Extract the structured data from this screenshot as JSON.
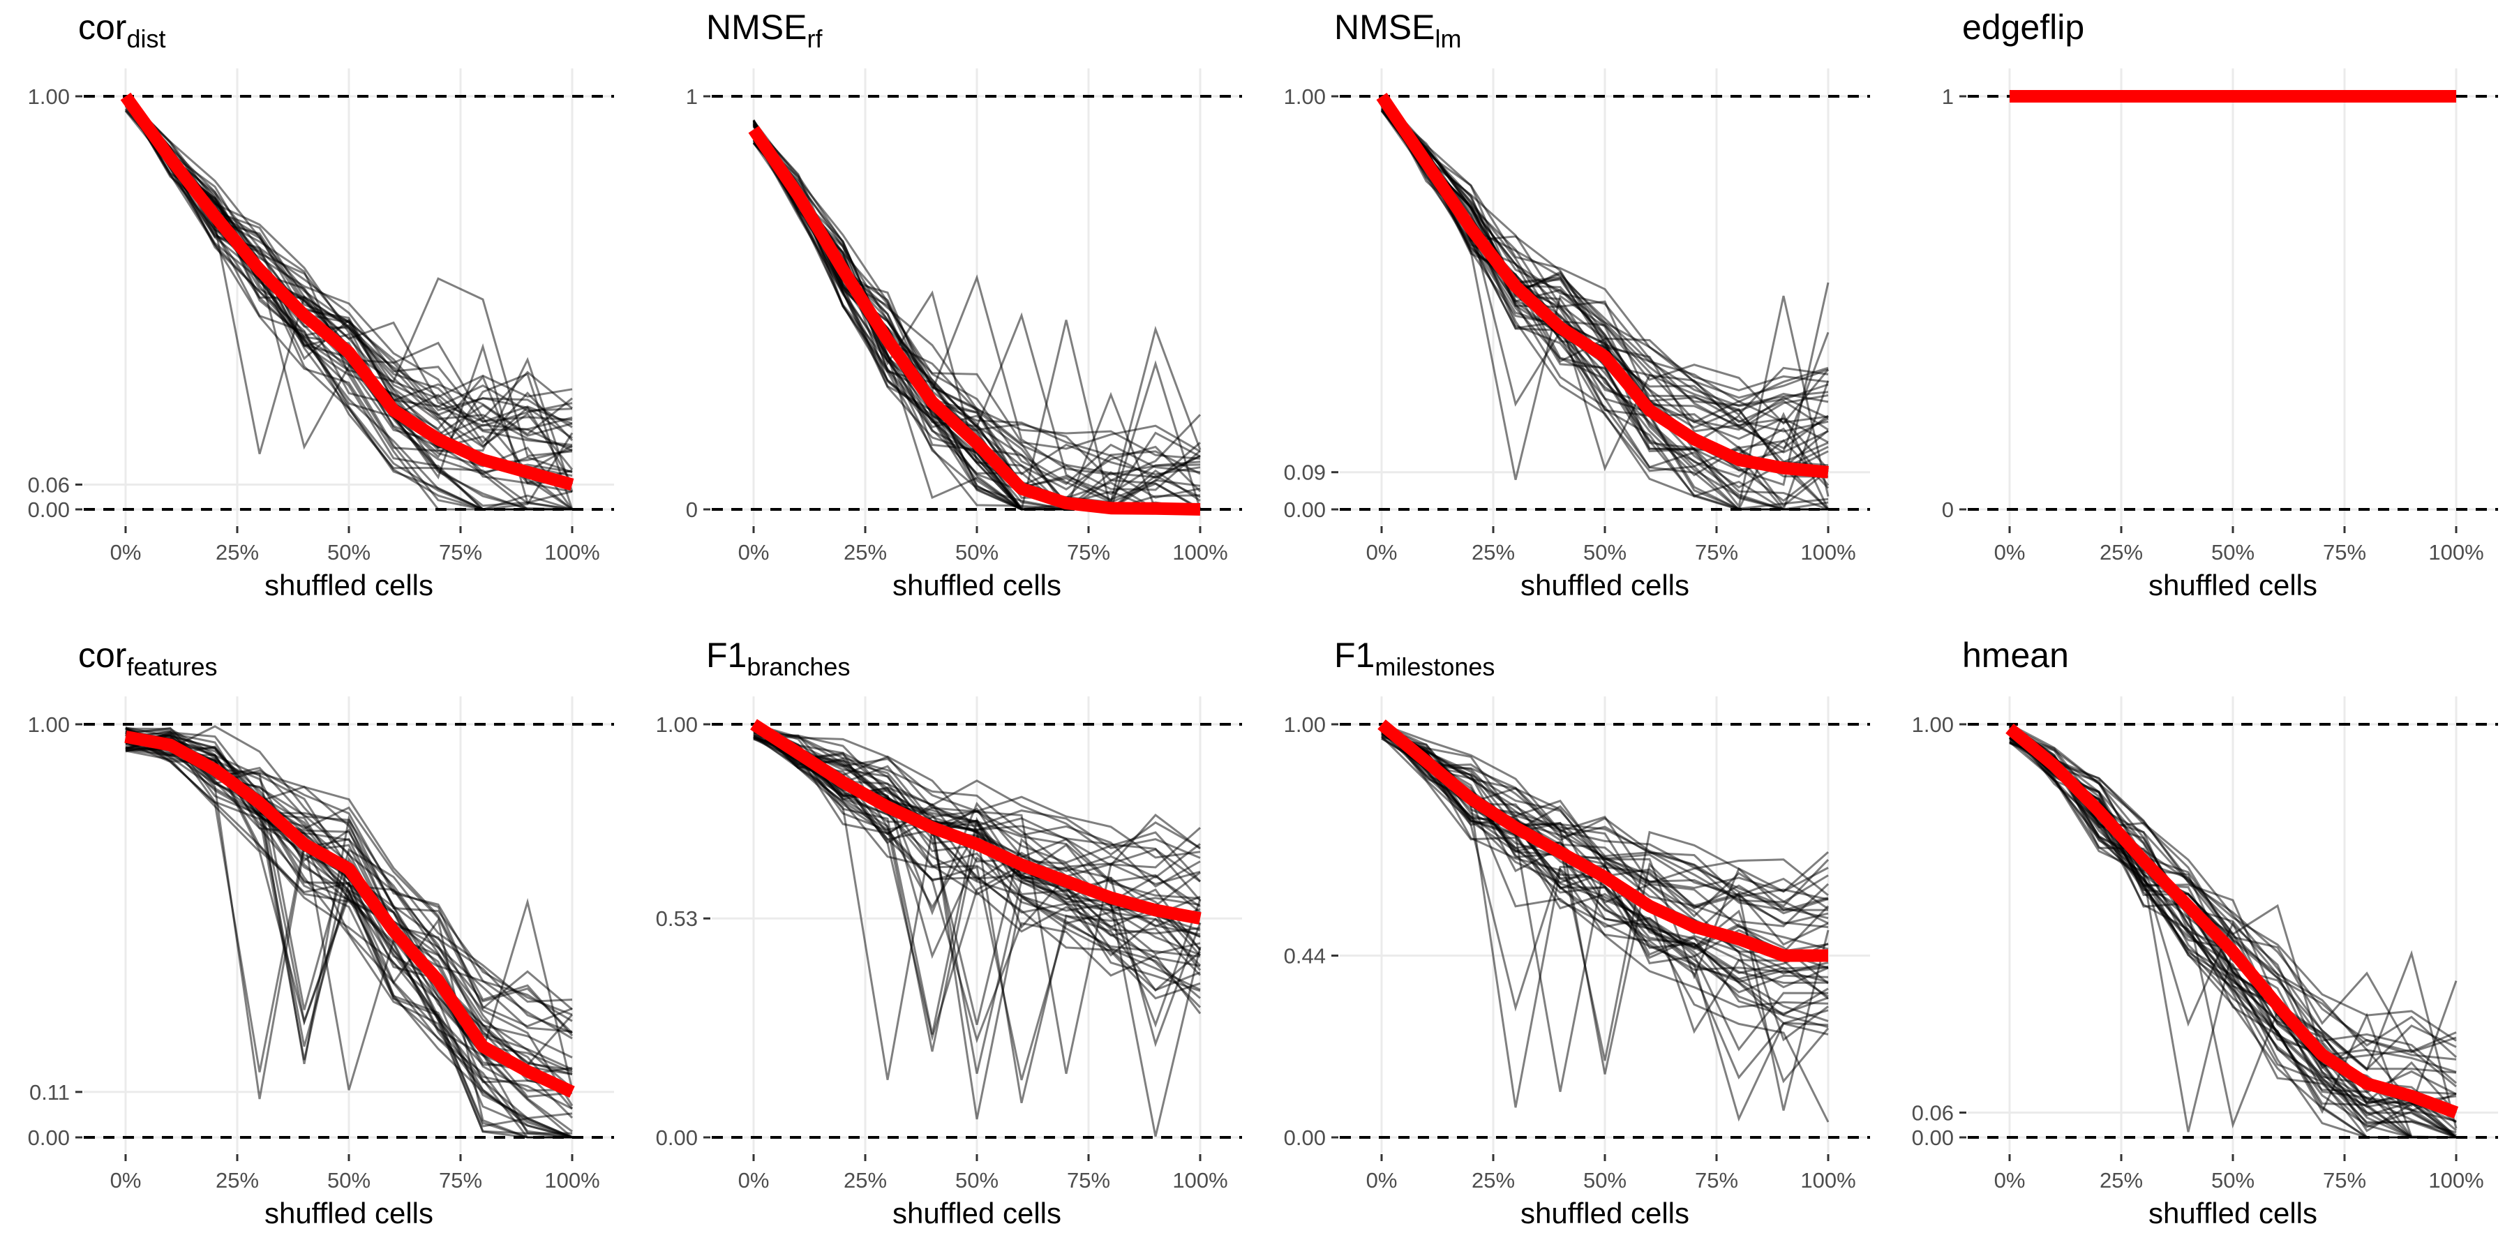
{
  "chart_data": [
    {
      "type": "line",
      "title": "cor",
      "title_sub": "dist",
      "xlabel": "shuffled cells",
      "xticks": [
        "0%",
        "25%",
        "50%",
        "75%",
        "100%"
      ],
      "xlim": [
        0,
        1
      ],
      "yticks": [
        "0.00",
        "0.06",
        "1.00"
      ],
      "ytick_values": [
        0,
        0.06,
        1
      ],
      "ylim": [
        0,
        1
      ],
      "reference_lines": [
        0,
        1
      ],
      "mean_line": {
        "color": "#ff0000",
        "x": [
          0,
          0.1,
          0.2,
          0.3,
          0.4,
          0.5,
          0.6,
          0.7,
          0.8,
          0.9,
          1.0
        ],
        "y": [
          1.0,
          0.85,
          0.71,
          0.58,
          0.47,
          0.38,
          0.24,
          0.17,
          0.12,
          0.09,
          0.06
        ]
      },
      "individual_lines": {
        "color": "#000000",
        "count": 45
      }
    },
    {
      "type": "line",
      "title": "NMSE",
      "title_sub": "rf",
      "xlabel": "shuffled cells",
      "xticks": [
        "0%",
        "25%",
        "50%",
        "75%",
        "100%"
      ],
      "xlim": [
        0,
        1
      ],
      "yticks": [
        "0",
        "1"
      ],
      "ytick_values": [
        0,
        1
      ],
      "ylim": [
        0,
        1
      ],
      "reference_lines": [
        0,
        1
      ],
      "mean_line": {
        "color": "#ff0000",
        "x": [
          0,
          0.1,
          0.2,
          0.3,
          0.4,
          0.5,
          0.6,
          0.7,
          0.8,
          0.9,
          1.0
        ],
        "y": [
          0.92,
          0.76,
          0.58,
          0.41,
          0.26,
          0.16,
          0.05,
          0.015,
          0.003,
          0.002,
          0.0
        ]
      },
      "individual_lines": {
        "color": "#000000",
        "count": 45
      }
    },
    {
      "type": "line",
      "title": "NMSE",
      "title_sub": "lm",
      "xlabel": "shuffled cells",
      "xticks": [
        "0%",
        "25%",
        "50%",
        "75%",
        "100%"
      ],
      "xlim": [
        0,
        1
      ],
      "yticks": [
        "0.00",
        "0.09",
        "1.00"
      ],
      "ytick_values": [
        0,
        0.09,
        1
      ],
      "ylim": [
        0,
        1
      ],
      "reference_lines": [
        0,
        1
      ],
      "mean_line": {
        "color": "#ff0000",
        "x": [
          0,
          0.1,
          0.2,
          0.3,
          0.4,
          0.5,
          0.6,
          0.7,
          0.8,
          0.9,
          1.0
        ],
        "y": [
          1.0,
          0.84,
          0.68,
          0.54,
          0.44,
          0.37,
          0.24,
          0.17,
          0.12,
          0.1,
          0.09
        ]
      },
      "individual_lines": {
        "color": "#000000",
        "count": 45
      }
    },
    {
      "type": "line",
      "title": "edgeflip",
      "title_sub": "",
      "xlabel": "shuffled cells",
      "xticks": [
        "0%",
        "25%",
        "50%",
        "75%",
        "100%"
      ],
      "xlim": [
        0,
        1
      ],
      "yticks": [
        "0",
        "1"
      ],
      "ytick_values": [
        0,
        1
      ],
      "ylim": [
        0,
        1
      ],
      "reference_lines": [
        0,
        1
      ],
      "mean_line": {
        "color": "#ff0000",
        "x": [
          0,
          0.1,
          0.2,
          0.3,
          0.4,
          0.5,
          0.6,
          0.7,
          0.8,
          0.9,
          1.0
        ],
        "y": [
          1,
          1,
          1,
          1,
          1,
          1,
          1,
          1,
          1,
          1,
          1
        ]
      },
      "individual_lines": {
        "color": "#000000",
        "count": 0
      }
    },
    {
      "type": "line",
      "title": "cor",
      "title_sub": "features",
      "xlabel": "shuffled cells",
      "xticks": [
        "0%",
        "25%",
        "50%",
        "75%",
        "100%"
      ],
      "xlim": [
        0,
        1
      ],
      "yticks": [
        "0.00",
        "0.11",
        "1.00"
      ],
      "ytick_values": [
        0,
        0.11,
        1
      ],
      "ylim": [
        0,
        1
      ],
      "reference_lines": [
        0,
        1
      ],
      "mean_line": {
        "color": "#ff0000",
        "x": [
          0,
          0.1,
          0.2,
          0.3,
          0.4,
          0.5,
          0.6,
          0.7,
          0.8,
          0.9,
          1.0
        ],
        "y": [
          0.97,
          0.95,
          0.89,
          0.81,
          0.71,
          0.65,
          0.5,
          0.38,
          0.22,
          0.16,
          0.11
        ]
      },
      "individual_lines": {
        "color": "#000000",
        "count": 45
      }
    },
    {
      "type": "line",
      "title": "F1",
      "title_sub": "branches",
      "xlabel": "shuffled cells",
      "xticks": [
        "0%",
        "25%",
        "50%",
        "75%",
        "100%"
      ],
      "xlim": [
        0,
        1
      ],
      "yticks": [
        "0.00",
        "0.53",
        "1.00"
      ],
      "ytick_values": [
        0,
        0.53,
        1
      ],
      "ylim": [
        0,
        1
      ],
      "reference_lines": [
        0,
        1
      ],
      "mean_line": {
        "color": "#ff0000",
        "x": [
          0,
          0.1,
          0.2,
          0.3,
          0.4,
          0.5,
          0.6,
          0.7,
          0.8,
          0.9,
          1.0
        ],
        "y": [
          1.0,
          0.93,
          0.86,
          0.8,
          0.75,
          0.71,
          0.66,
          0.62,
          0.58,
          0.55,
          0.53
        ]
      },
      "individual_lines": {
        "color": "#000000",
        "count": 45
      }
    },
    {
      "type": "line",
      "title": "F1",
      "title_sub": "milestones",
      "xlabel": "shuffled cells",
      "xticks": [
        "0%",
        "25%",
        "50%",
        "75%",
        "100%"
      ],
      "xlim": [
        0,
        1
      ],
      "yticks": [
        "0.00",
        "0.44",
        "1.00"
      ],
      "ytick_values": [
        0,
        0.44,
        1
      ],
      "ylim": [
        0,
        1
      ],
      "reference_lines": [
        0,
        1
      ],
      "mean_line": {
        "color": "#ff0000",
        "x": [
          0,
          0.1,
          0.2,
          0.3,
          0.4,
          0.5,
          0.6,
          0.7,
          0.8,
          0.9,
          1.0
        ],
        "y": [
          1.0,
          0.91,
          0.82,
          0.75,
          0.69,
          0.63,
          0.56,
          0.51,
          0.48,
          0.44,
          0.44
        ]
      },
      "individual_lines": {
        "color": "#000000",
        "count": 45
      }
    },
    {
      "type": "line",
      "title": "hmean",
      "title_sub": "",
      "xlabel": "shuffled cells",
      "xticks": [
        "0%",
        "25%",
        "50%",
        "75%",
        "100%"
      ],
      "xlim": [
        0,
        1
      ],
      "yticks": [
        "0.00",
        "0.06",
        "1.00"
      ],
      "ytick_values": [
        0,
        0.06,
        1
      ],
      "ylim": [
        0,
        1
      ],
      "reference_lines": [
        0,
        1
      ],
      "mean_line": {
        "color": "#ff0000",
        "x": [
          0,
          0.1,
          0.2,
          0.3,
          0.4,
          0.5,
          0.6,
          0.7,
          0.8,
          0.9,
          1.0
        ],
        "y": [
          0.99,
          0.9,
          0.79,
          0.67,
          0.56,
          0.45,
          0.32,
          0.2,
          0.13,
          0.1,
          0.06
        ]
      },
      "individual_lines": {
        "color": "#000000",
        "count": 45
      }
    }
  ]
}
